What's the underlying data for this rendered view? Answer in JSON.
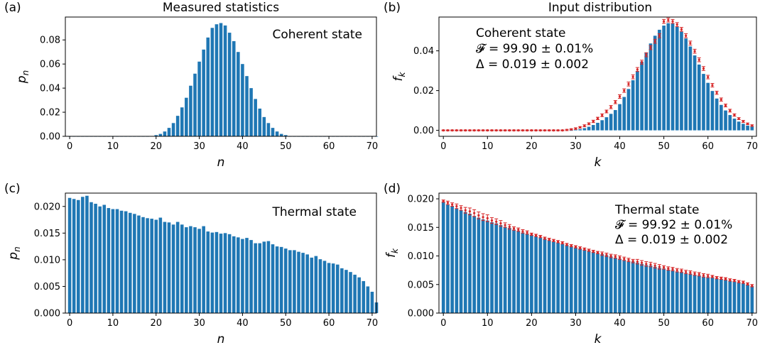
{
  "column_titles": {
    "left": "Measured statistics",
    "right": "Input distribution"
  },
  "colors": {
    "bar": "#1f77b4",
    "error": "#d62728",
    "axis": "#000000"
  },
  "chart_data": [
    {
      "id": "a",
      "type": "bar",
      "panel_label": "(a)",
      "xlabel": "n",
      "ylabel": "p_n",
      "xlim": [
        -1,
        71
      ],
      "ylim": [
        0,
        0.099
      ],
      "xticks": [
        0,
        10,
        20,
        30,
        40,
        50,
        60,
        70
      ],
      "yticks": [
        0.0,
        0.02,
        0.04,
        0.06,
        0.08
      ],
      "ytick_labels": [
        "0.00",
        "0.02",
        "0.04",
        "0.06",
        "0.08"
      ],
      "annotations": [
        "Coherent state"
      ],
      "x_start": 0,
      "values": [
        0,
        0,
        0,
        0,
        0,
        0,
        0,
        0,
        0,
        0,
        0,
        0,
        0,
        0,
        0,
        0,
        0,
        0,
        0,
        0.0003,
        0.001,
        0.002,
        0.004,
        0.007,
        0.011,
        0.017,
        0.024,
        0.032,
        0.042,
        0.052,
        0.062,
        0.072,
        0.082,
        0.09,
        0.093,
        0.094,
        0.092,
        0.086,
        0.079,
        0.07,
        0.06,
        0.05,
        0.04,
        0.031,
        0.023,
        0.016,
        0.011,
        0.007,
        0.004,
        0.002,
        0.001,
        0,
        0,
        0,
        0,
        0,
        0,
        0,
        0,
        0,
        0,
        0,
        0,
        0,
        0,
        0,
        0,
        0,
        0,
        0,
        0,
        0
      ]
    },
    {
      "id": "b",
      "type": "bar",
      "panel_label": "(b)",
      "xlabel": "k",
      "ylabel": "f_k",
      "xlim": [
        -1,
        71
      ],
      "ylim": [
        -0.003,
        0.057
      ],
      "xticks": [
        0,
        10,
        20,
        30,
        40,
        50,
        60,
        70
      ],
      "yticks": [
        0.0,
        0.02,
        0.04
      ],
      "ytick_labels": [
        "0.00",
        "0.02",
        "0.04"
      ],
      "annotations": [
        "Coherent state",
        "𝓕 = 99.90 ± 0.01%",
        "Δ = 0.019 ± 0.002"
      ],
      "x_start": 0,
      "values": [
        0,
        0,
        0,
        0,
        0,
        0,
        0,
        0,
        0,
        0,
        0,
        0,
        0,
        0,
        0,
        0,
        0,
        0,
        0,
        0,
        0,
        0,
        0,
        0,
        0,
        0,
        0,
        0,
        0,
        0,
        0.0003,
        0.0006,
        0.0011,
        0.0018,
        0.0027,
        0.0038,
        0.0051,
        0.0066,
        0.0083,
        0.0102,
        0.0132,
        0.0168,
        0.0208,
        0.0252,
        0.0299,
        0.0346,
        0.0392,
        0.0437,
        0.0476,
        0.0506,
        0.0527,
        0.0539,
        0.0537,
        0.0521,
        0.0496,
        0.0462,
        0.0422,
        0.0377,
        0.0331,
        0.0284,
        0.0239,
        0.0198,
        0.016,
        0.0128,
        0.01,
        0.0077,
        0.0059,
        0.0044,
        0.0033,
        0.0024,
        0.0018
      ],
      "markers": [
        0,
        0,
        0,
        0,
        0,
        0,
        0,
        0,
        0,
        0,
        0,
        0,
        0,
        0,
        0,
        0,
        0,
        0,
        0,
        0,
        0,
        0,
        0,
        0,
        0,
        0,
        0,
        0,
        0.0002,
        0.0005,
        0.0009,
        0.0015,
        0.0023,
        0.0033,
        0.0045,
        0.006,
        0.0076,
        0.0095,
        0.0117,
        0.0142,
        0.017,
        0.02,
        0.0233,
        0.0269,
        0.0306,
        0.0343,
        0.038,
        0.0416,
        0.0448,
        0.0476,
        0.0548,
        0.0555,
        0.0548,
        0.0532,
        0.0508,
        0.0476,
        0.0439,
        0.0398,
        0.0355,
        0.0311,
        0.0268,
        0.0227,
        0.0189,
        0.0155,
        0.0125,
        0.0099,
        0.0077,
        0.0059,
        0.0045,
        0.0033,
        0.0024
      ],
      "errors": [
        0.0002,
        0.0002,
        0.0002,
        0.0002,
        0.0002,
        0.0002,
        0.0002,
        0.0002,
        0.0002,
        0.0002,
        0.0002,
        0.0002,
        0.0002,
        0.0002,
        0.0002,
        0.0002,
        0.0002,
        0.0002,
        0.0002,
        0.0002,
        0.0002,
        0.0002,
        0.0002,
        0.0002,
        0.0002,
        0.0002,
        0.0002,
        0.0002,
        0.0003,
        0.0003,
        0.0004,
        0.0004,
        0.0005,
        0.0005,
        0.0006,
        0.0006,
        0.0007,
        0.0007,
        0.0008,
        0.0008,
        0.0009,
        0.0009,
        0.001,
        0.001,
        0.001,
        0.001,
        0.001,
        0.001,
        0.001,
        0.001,
        0.001,
        0.001,
        0.001,
        0.001,
        0.001,
        0.001,
        0.001,
        0.001,
        0.001,
        0.001,
        0.0009,
        0.0009,
        0.0008,
        0.0008,
        0.0007,
        0.0007,
        0.0006,
        0.0005,
        0.0005,
        0.0004,
        0.0004
      ]
    },
    {
      "id": "c",
      "type": "bar",
      "panel_label": "(c)",
      "xlabel": "n",
      "ylabel": "p_n",
      "xlim": [
        -1,
        71
      ],
      "ylim": [
        0,
        0.0225
      ],
      "xticks": [
        0,
        10,
        20,
        30,
        40,
        50,
        60,
        70
      ],
      "yticks": [
        0.0,
        0.005,
        0.01,
        0.015,
        0.02
      ],
      "ytick_labels": [
        "0.000",
        "0.005",
        "0.010",
        "0.015",
        "0.020"
      ],
      "annotations": [
        "Thermal state"
      ],
      "x_start": 0,
      "values": [
        0.0216,
        0.0214,
        0.0212,
        0.0218,
        0.022,
        0.0208,
        0.0205,
        0.02,
        0.0203,
        0.0197,
        0.0195,
        0.0195,
        0.0192,
        0.0191,
        0.0188,
        0.0186,
        0.0183,
        0.018,
        0.0178,
        0.0177,
        0.0175,
        0.0179,
        0.0171,
        0.017,
        0.0166,
        0.0171,
        0.0166,
        0.0161,
        0.0163,
        0.0161,
        0.0158,
        0.0163,
        0.0153,
        0.0151,
        0.0152,
        0.0149,
        0.015,
        0.0148,
        0.0144,
        0.0142,
        0.0139,
        0.0141,
        0.0137,
        0.0131,
        0.0131,
        0.0134,
        0.0135,
        0.0129,
        0.0125,
        0.0124,
        0.0121,
        0.0118,
        0.0118,
        0.0115,
        0.0113,
        0.011,
        0.0104,
        0.0107,
        0.0101,
        0.0098,
        0.0094,
        0.0093,
        0.0091,
        0.0084,
        0.0081,
        0.0077,
        0.0072,
        0.0067,
        0.006,
        0.005,
        0.004,
        0.002
      ]
    },
    {
      "id": "d",
      "type": "bar",
      "panel_label": "(d)",
      "xlabel": "k",
      "ylabel": "f_k",
      "xlim": [
        -1,
        71
      ],
      "ylim": [
        0,
        0.021
      ],
      "xticks": [
        0,
        10,
        20,
        30,
        40,
        50,
        60,
        70
      ],
      "yticks": [
        0.0,
        0.005,
        0.01,
        0.015,
        0.02
      ],
      "ytick_labels": [
        "0.000",
        "0.005",
        "0.010",
        "0.015",
        "0.020"
      ],
      "annotations": [
        "Thermal state",
        "𝓕 = 99.92 ± 0.01%",
        "Δ = 0.019 ± 0.002"
      ],
      "x_start": 0,
      "values": [
        0.0195,
        0.019,
        0.0187,
        0.0183,
        0.018,
        0.0177,
        0.0174,
        0.017,
        0.0167,
        0.0164,
        0.0162,
        0.0159,
        0.0157,
        0.0154,
        0.0151,
        0.0149,
        0.0146,
        0.0144,
        0.0141,
        0.0139,
        0.0137,
        0.0134,
        0.0132,
        0.013,
        0.0127,
        0.0125,
        0.0123,
        0.0121,
        0.0119,
        0.0117,
        0.0115,
        0.0113,
        0.0111,
        0.0109,
        0.0107,
        0.0105,
        0.0103,
        0.0101,
        0.0099,
        0.0097,
        0.0095,
        0.0093,
        0.0091,
        0.009,
        0.0088,
        0.0086,
        0.0084,
        0.0083,
        0.0081,
        0.0079,
        0.0078,
        0.0076,
        0.0075,
        0.0073,
        0.0072,
        0.007,
        0.0069,
        0.0067,
        0.0066,
        0.0064,
        0.0063,
        0.0062,
        0.006,
        0.0059,
        0.0058,
        0.0056,
        0.0055,
        0.0054,
        0.0052,
        0.005,
        0.0047
      ],
      "markers": [
        0.0196,
        0.0193,
        0.019,
        0.0187,
        0.0184,
        0.018,
        0.0178,
        0.0175,
        0.0171,
        0.0168,
        0.0166,
        0.0162,
        0.016,
        0.0157,
        0.0154,
        0.0151,
        0.0148,
        0.0146,
        0.0143,
        0.0141,
        0.0138,
        0.0136,
        0.0134,
        0.0131,
        0.0129,
        0.0127,
        0.0125,
        0.0123,
        0.012,
        0.0118,
        0.0116,
        0.0114,
        0.0112,
        0.011,
        0.0108,
        0.0106,
        0.0104,
        0.0102,
        0.01,
        0.0099,
        0.0097,
        0.0095,
        0.0093,
        0.0091,
        0.009,
        0.0088,
        0.0086,
        0.0085,
        0.0083,
        0.0081,
        0.008,
        0.0078,
        0.0077,
        0.0075,
        0.0074,
        0.0072,
        0.0071,
        0.0069,
        0.0068,
        0.0066,
        0.0065,
        0.0064,
        0.0062,
        0.0061,
        0.006,
        0.0058,
        0.0057,
        0.0055,
        0.0054,
        0.0051,
        0.0048
      ],
      "errors": [
        0.0002,
        0.0003,
        0.0003,
        0.0004,
        0.0004,
        0.0005,
        0.0006,
        0.0006,
        0.0006,
        0.0006,
        0.0006,
        0.0005,
        0.0005,
        0.0005,
        0.0004,
        0.0004,
        0.0003,
        0.0003,
        0.0003,
        0.0003,
        0.0002,
        0.0002,
        0.0002,
        0.0002,
        0.0002,
        0.0002,
        0.0002,
        0.0002,
        0.0002,
        0.0002,
        0.0002,
        0.0002,
        0.0002,
        0.0002,
        0.0002,
        0.0002,
        0.0003,
        0.0003,
        0.0003,
        0.0003,
        0.0003,
        0.0003,
        0.0003,
        0.0003,
        0.0004,
        0.0004,
        0.0004,
        0.0004,
        0.0004,
        0.0004,
        0.0003,
        0.0003,
        0.0003,
        0.0003,
        0.0003,
        0.0003,
        0.0003,
        0.0003,
        0.0003,
        0.0003,
        0.0003,
        0.0002,
        0.0002,
        0.0002,
        0.0002,
        0.0002,
        0.0002,
        0.0002,
        0.0002,
        0.0002,
        0.0002
      ]
    }
  ]
}
